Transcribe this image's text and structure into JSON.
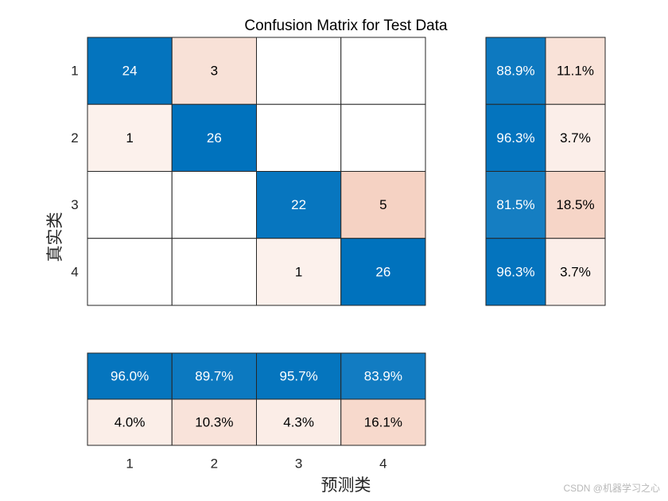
{
  "chart_data": {
    "type": "heatmap",
    "title": "Confusion Matrix for Test Data",
    "xlabel": "预测类",
    "ylabel": "真实类",
    "classes": [
      "1",
      "2",
      "3",
      "4"
    ],
    "matrix": [
      [
        24,
        3,
        null,
        null
      ],
      [
        1,
        26,
        null,
        null
      ],
      [
        null,
        null,
        22,
        5
      ],
      [
        null,
        null,
        1,
        26
      ]
    ],
    "row_summary": [
      [
        "88.9%",
        "11.1%"
      ],
      [
        "96.3%",
        "3.7%"
      ],
      [
        "81.5%",
        "18.5%"
      ],
      [
        "96.3%",
        "3.7%"
      ]
    ],
    "row_summary_values": [
      [
        88.9,
        11.1
      ],
      [
        96.3,
        3.7
      ],
      [
        81.5,
        18.5
      ],
      [
        96.3,
        3.7
      ]
    ],
    "column_summary": [
      [
        "96.0%",
        "89.7%",
        "95.7%",
        "83.9%"
      ],
      [
        "4.0%",
        "10.3%",
        "4.3%",
        "16.1%"
      ]
    ],
    "column_summary_values": [
      [
        96.0,
        89.7,
        95.7,
        83.9
      ],
      [
        4.0,
        10.3,
        4.3,
        16.1
      ]
    ],
    "colors": {
      "correct": "#0072bd",
      "incorrect": "#d95319",
      "empty": "#ffffff",
      "border": "#262626"
    }
  },
  "watermark": "CSDN @机器学习之心"
}
